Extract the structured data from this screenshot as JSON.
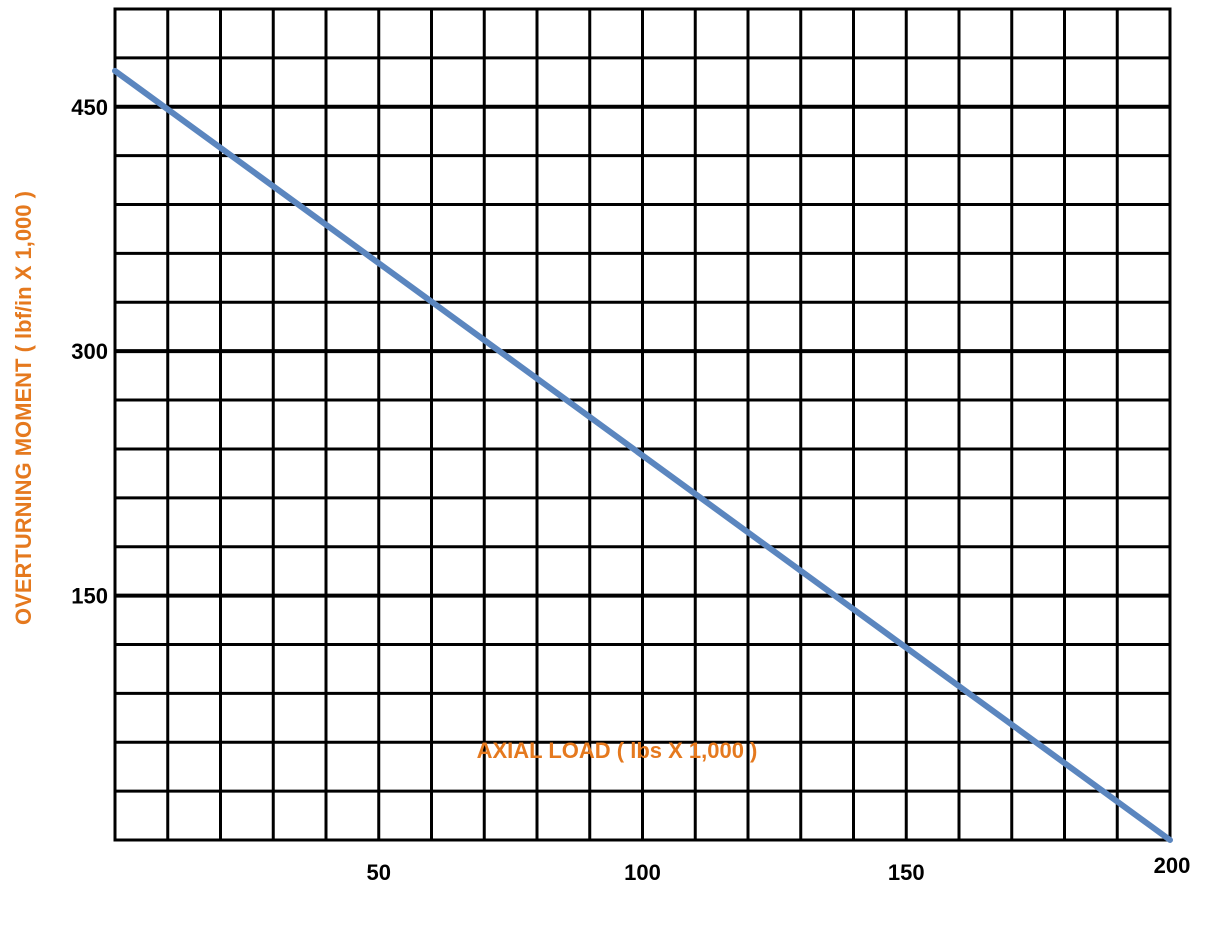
{
  "chart_data": {
    "type": "line",
    "title": "",
    "xlabel": "AXIAL LOAD  ( lbs X 1,000 )",
    "ylabel": "OVERTURNING MOMENT ( lbf/in X 1,000 )",
    "xlim": [
      0,
      200
    ],
    "ylim": [
      0,
      510
    ],
    "grid": true,
    "x_ticks": [
      {
        "value": 50,
        "label": "50"
      },
      {
        "value": 100,
        "label": "100"
      },
      {
        "value": 150,
        "label": "150"
      },
      {
        "value": 200,
        "label": "200"
      }
    ],
    "y_ticks": [
      {
        "value": 150,
        "label": "150"
      },
      {
        "value": 300,
        "label": "300"
      },
      {
        "value": 450,
        "label": "450"
      }
    ],
    "x_grid_step": 10,
    "y_grid_step": 30,
    "series": [
      {
        "color": "#5b86bf",
        "points": [
          {
            "x": 0,
            "y": 472
          },
          {
            "x": 200,
            "y": 0
          }
        ]
      }
    ]
  },
  "colors": {
    "axis_title": "#e5791e",
    "grid": "#000000",
    "line": "#5b86bf"
  }
}
